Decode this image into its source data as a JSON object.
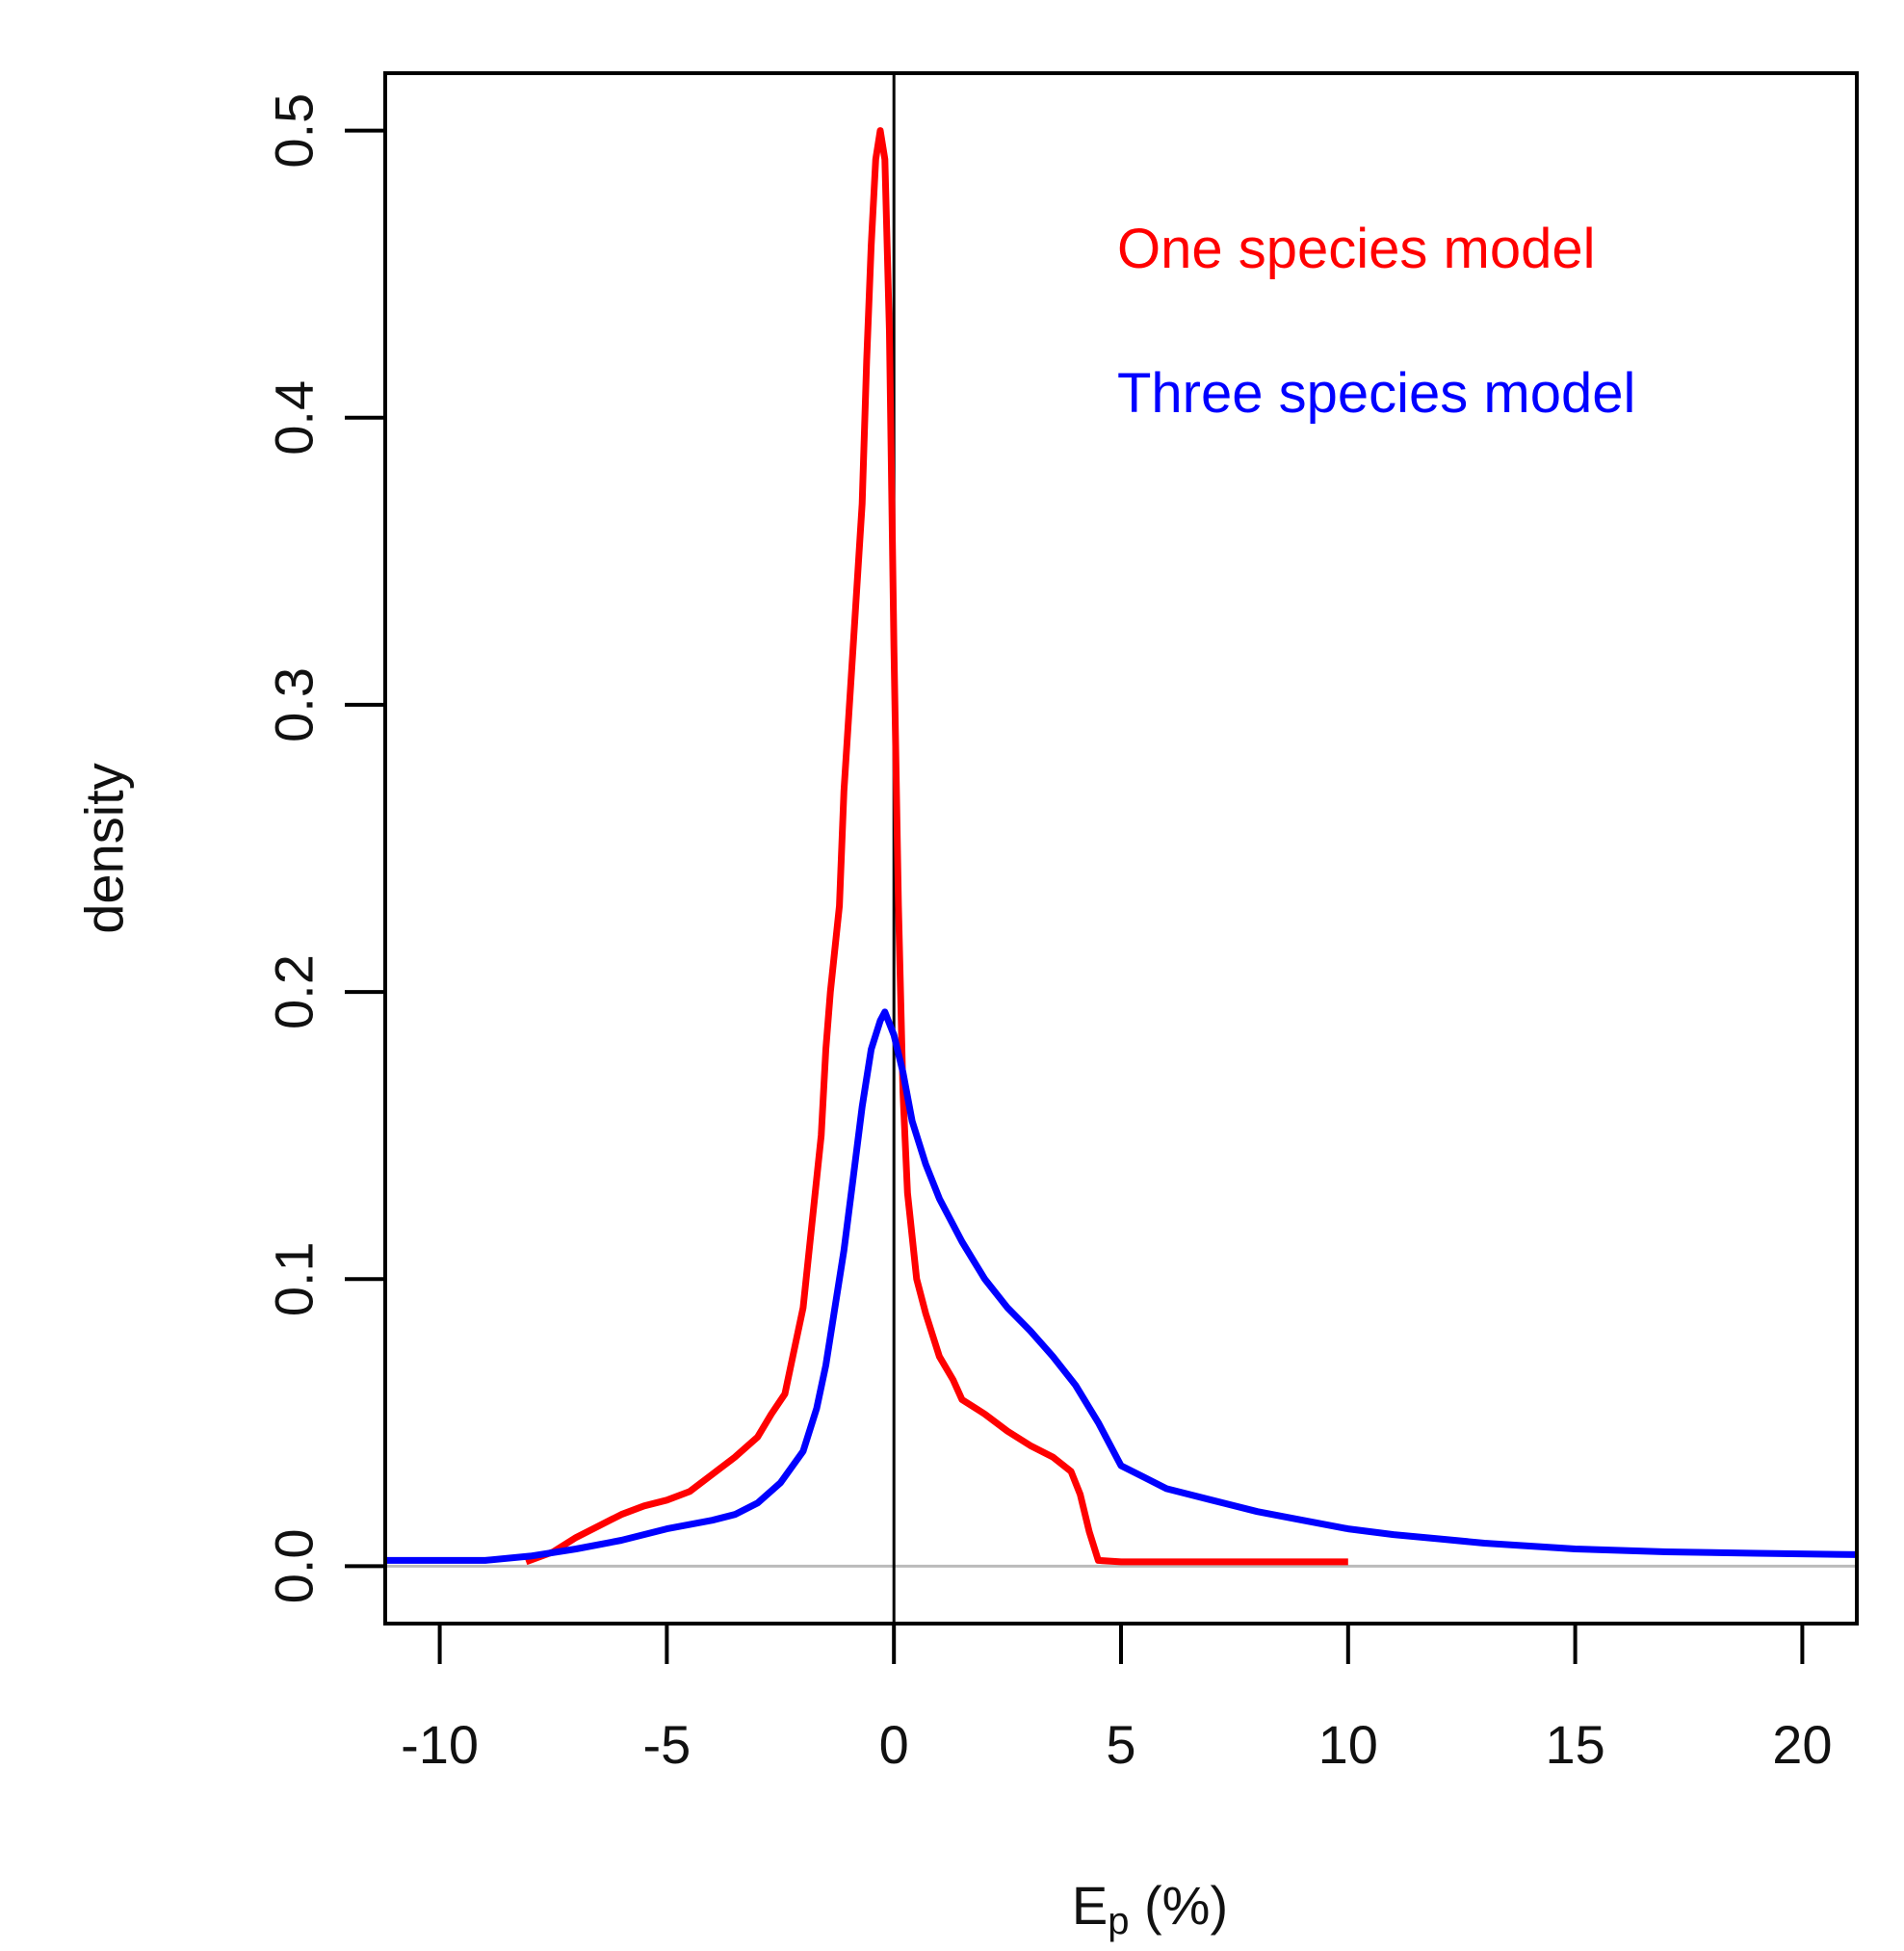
{
  "chart_data": {
    "type": "line",
    "xlabel_main": "E",
    "xlabel_sub": "p",
    "xlabel_unit": " (%)",
    "ylabel": "density",
    "xlim": [
      -11.2,
      21.2
    ],
    "ylim": [
      -0.02,
      0.52
    ],
    "xticks": [
      -10,
      -5,
      0,
      5,
      10,
      15,
      20
    ],
    "xtick_labels": [
      "-10",
      "-5",
      "0",
      "5",
      "10",
      "15",
      "20"
    ],
    "yticks": [
      0.0,
      0.1,
      0.2,
      0.3,
      0.4,
      0.5
    ],
    "ytick_labels": [
      "0.0",
      "0.1",
      "0.2",
      "0.3",
      "0.4",
      "0.5"
    ],
    "reference_lines": {
      "vertical_x": 0,
      "horizontal_y": 0
    },
    "legend": {
      "position": "top-right",
      "entries": [
        "One species model",
        "Three species model"
      ]
    },
    "series": [
      {
        "name": "One species model",
        "color": "#ff0000",
        "points": [
          [
            -8.1,
            0.0015
          ],
          [
            -7.5,
            0.005
          ],
          [
            -7.0,
            0.01
          ],
          [
            -6.5,
            0.014
          ],
          [
            -6.0,
            0.018
          ],
          [
            -5.5,
            0.021
          ],
          [
            -5.0,
            0.023
          ],
          [
            -4.5,
            0.026
          ],
          [
            -4.0,
            0.032
          ],
          [
            -3.5,
            0.038
          ],
          [
            -3.0,
            0.045
          ],
          [
            -2.7,
            0.053
          ],
          [
            -2.4,
            0.06
          ],
          [
            -2.2,
            0.075
          ],
          [
            -2.0,
            0.09
          ],
          [
            -1.8,
            0.12
          ],
          [
            -1.6,
            0.15
          ],
          [
            -1.5,
            0.18
          ],
          [
            -1.4,
            0.2
          ],
          [
            -1.2,
            0.23
          ],
          [
            -1.1,
            0.27
          ],
          [
            -0.9,
            0.32
          ],
          [
            -0.7,
            0.37
          ],
          [
            -0.6,
            0.42
          ],
          [
            -0.5,
            0.46
          ],
          [
            -0.4,
            0.49
          ],
          [
            -0.3,
            0.5
          ],
          [
            -0.2,
            0.49
          ],
          [
            -0.1,
            0.43
          ],
          [
            0.0,
            0.32
          ],
          [
            0.1,
            0.23
          ],
          [
            0.2,
            0.165
          ],
          [
            0.3,
            0.13
          ],
          [
            0.5,
            0.1
          ],
          [
            0.7,
            0.088
          ],
          [
            1.0,
            0.073
          ],
          [
            1.3,
            0.065
          ],
          [
            1.5,
            0.058
          ],
          [
            2.0,
            0.053
          ],
          [
            2.5,
            0.047
          ],
          [
            3.0,
            0.042
          ],
          [
            3.5,
            0.038
          ],
          [
            3.9,
            0.033
          ],
          [
            4.1,
            0.025
          ],
          [
            4.3,
            0.012
          ],
          [
            4.5,
            0.002
          ],
          [
            5.0,
            0.0015
          ],
          [
            10.0,
            0.0015
          ]
        ]
      },
      {
        "name": "Three species model",
        "color": "#0000ff",
        "points": [
          [
            -11.2,
            0.002
          ],
          [
            -9.0,
            0.002
          ],
          [
            -8.0,
            0.0035
          ],
          [
            -7.0,
            0.006
          ],
          [
            -6.0,
            0.009
          ],
          [
            -5.0,
            0.013
          ],
          [
            -4.0,
            0.016
          ],
          [
            -3.5,
            0.018
          ],
          [
            -3.0,
            0.022
          ],
          [
            -2.5,
            0.029
          ],
          [
            -2.0,
            0.04
          ],
          [
            -1.7,
            0.055
          ],
          [
            -1.5,
            0.07
          ],
          [
            -1.3,
            0.09
          ],
          [
            -1.1,
            0.11
          ],
          [
            -0.9,
            0.135
          ],
          [
            -0.7,
            0.16
          ],
          [
            -0.5,
            0.18
          ],
          [
            -0.3,
            0.19
          ],
          [
            -0.2,
            0.193
          ],
          [
            0.0,
            0.185
          ],
          [
            0.2,
            0.172
          ],
          [
            0.4,
            0.155
          ],
          [
            0.7,
            0.14
          ],
          [
            1.0,
            0.128
          ],
          [
            1.5,
            0.113
          ],
          [
            2.0,
            0.1
          ],
          [
            2.5,
            0.09
          ],
          [
            3.0,
            0.082
          ],
          [
            3.5,
            0.073
          ],
          [
            4.0,
            0.063
          ],
          [
            4.5,
            0.05
          ],
          [
            5.0,
            0.035
          ],
          [
            5.5,
            0.031
          ],
          [
            6.0,
            0.027
          ],
          [
            7.0,
            0.023
          ],
          [
            8.0,
            0.019
          ],
          [
            9.0,
            0.016
          ],
          [
            10.0,
            0.013
          ],
          [
            11.0,
            0.011
          ],
          [
            12.0,
            0.0095
          ],
          [
            13.0,
            0.008
          ],
          [
            14.0,
            0.007
          ],
          [
            15.0,
            0.006
          ],
          [
            17.0,
            0.005
          ],
          [
            19.0,
            0.0045
          ],
          [
            21.2,
            0.004
          ]
        ]
      }
    ]
  }
}
